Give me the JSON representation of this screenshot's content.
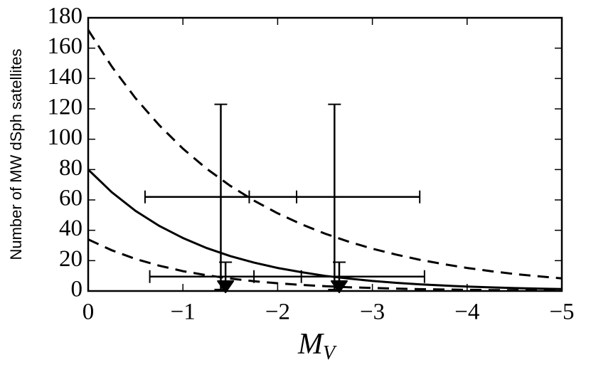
{
  "chart_data": {
    "type": "line",
    "ylabel": "Number of MW dSph satellites",
    "xlabel": "M",
    "xlabel_sub": "V",
    "xlim": [
      0,
      -5
    ],
    "ylim": [
      0,
      180
    ],
    "xticks": [
      0,
      {
        "value": -1,
        "label": "−1"
      },
      {
        "value": -2,
        "label": "−2"
      },
      {
        "value": -3,
        "label": "−3"
      },
      {
        "value": -4,
        "label": "−4"
      },
      {
        "value": -5,
        "label": "−5"
      }
    ],
    "yticks": [
      0,
      20,
      40,
      60,
      80,
      100,
      120,
      140,
      160,
      180
    ],
    "x": [
      0,
      -0.25,
      -0.5,
      -0.75,
      -1,
      -1.25,
      -1.5,
      -1.75,
      -2,
      -2.25,
      -2.5,
      -2.75,
      -3,
      -3.25,
      -3.5,
      -3.75,
      -4,
      -4.25,
      -4.5,
      -4.75,
      -5
    ],
    "series": [
      {
        "color": "#000000",
        "style": "solid",
        "values": [
          80,
          65.0,
          52.8,
          42.9,
          34.9,
          28.3,
          23.0,
          18.7,
          15.2,
          12.4,
          10.0,
          8.2,
          6.6,
          5.4,
          4.4,
          3.6,
          2.9,
          2.4,
          1.9,
          1.6,
          1.3
        ]
      },
      {
        "color": "#000000",
        "style": "dashed",
        "values": [
          172,
          147.8,
          127.0,
          109.2,
          93.8,
          80.6,
          69.3,
          59.6,
          51.2,
          44.0,
          37.8,
          32.5,
          27.9,
          24.0,
          20.6,
          17.7,
          15.2,
          13.1,
          11.2,
          9.7,
          8.3
        ]
      },
      {
        "color": "#000000",
        "style": "dashed",
        "values": [
          34,
          26.8,
          21.1,
          16.7,
          13.1,
          10.4,
          8.2,
          6.4,
          5.1,
          4.0,
          3.2,
          2.5,
          2.0,
          1.6,
          1.2,
          1.0,
          0.8,
          0.6,
          0.5,
          0.4,
          0.3
        ]
      }
    ],
    "errorbars": [
      {
        "x": -1.4,
        "y": 62,
        "xerr": 0.8,
        "yerr": 61,
        "uplims": false
      },
      {
        "x": -2.6,
        "y": 62,
        "xerr": 0.9,
        "yerr": 61,
        "uplims": false
      },
      {
        "x": -1.45,
        "y": 9.5,
        "xerr": 0.8,
        "yerr": 9.5,
        "uplims": true
      },
      {
        "x": -2.65,
        "y": 9.5,
        "xerr": 0.9,
        "yerr": 9.5,
        "uplims": true
      }
    ],
    "errorbar_color": "#000000"
  }
}
